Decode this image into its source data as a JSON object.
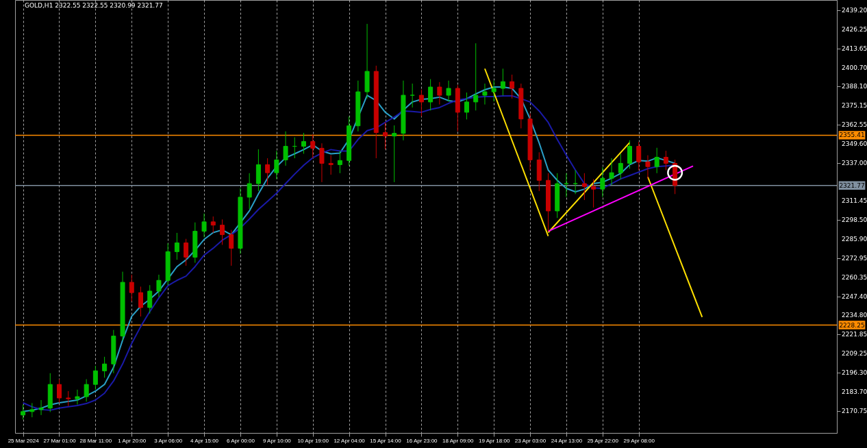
{
  "chart_data": {
    "type": "candlestick",
    "title": "GOLD,H1  2322.55 2322.55 2320.99 2321.77",
    "categories": [
      "25 Mar 2024",
      null,
      null,
      null,
      "27 Mar 01:00",
      null,
      null,
      null,
      "28 Mar 11:00",
      null,
      null,
      null,
      "1 Apr 20:00",
      null,
      null,
      null,
      "3 Apr 06:00",
      null,
      null,
      null,
      "4 Apr 15:00",
      null,
      null,
      null,
      "6 Apr 00:00",
      null,
      null,
      null,
      "9 Apr 10:00",
      null,
      null,
      null,
      "10 Apr 19:00",
      null,
      null,
      null,
      "12 Apr 04:00",
      null,
      null,
      null,
      "15 Apr 14:00",
      null,
      null,
      null,
      "16 Apr 23:00",
      null,
      null,
      null,
      "18 Apr 09:00",
      null,
      null,
      null,
      "19 Apr 18:00",
      null,
      null,
      null,
      "23 Apr 03:00",
      null,
      null,
      null,
      "24 Apr 13:00",
      null,
      null,
      null,
      "25 Apr 22:00",
      null,
      null,
      null,
      "29 Apr 08:00",
      null,
      null,
      null,
      null,
      null,
      null,
      null,
      null,
      null,
      null,
      null,
      null,
      null,
      null,
      null,
      null,
      null,
      null,
      null,
      null,
      null
    ],
    "ohlc": [
      [
        2168.0,
        2175.0,
        2165.0,
        2170.3
      ],
      [
        2170.3,
        2176.0,
        2166.5,
        2171.6
      ],
      [
        2171.6,
        2178.0,
        2168.0,
        2172.6
      ],
      [
        2172.6,
        2196.0,
        2170.0,
        2188.5
      ],
      [
        2188.5,
        2192.0,
        2176.0,
        2179.4
      ],
      [
        2179.4,
        2184.0,
        2174.0,
        2178.9
      ],
      [
        2178.9,
        2185.0,
        2175.0,
        2180.3
      ],
      [
        2180.3,
        2192.0,
        2177.0,
        2188.5
      ],
      [
        2188.5,
        2201.0,
        2185.0,
        2197.6
      ],
      [
        2197.6,
        2207.0,
        2193.0,
        2202.2
      ],
      [
        2202.2,
        2225.0,
        2196.0,
        2220.9
      ],
      [
        2220.9,
        2264.0,
        2218.0,
        2256.9
      ],
      [
        2256.9,
        2262.0,
        2244.0,
        2250.0
      ],
      [
        2250.0,
        2254.0,
        2234.0,
        2240.0
      ],
      [
        2240.0,
        2255.0,
        2236.0,
        2251.0
      ],
      [
        2251.0,
        2262.0,
        2247.0,
        2258.2
      ],
      [
        2258.2,
        2283.0,
        2255.0,
        2277.4
      ],
      [
        2277.4,
        2290.0,
        2272.0,
        2283.3
      ],
      [
        2283.3,
        2286.0,
        2268.0,
        2273.7
      ],
      [
        2273.7,
        2297.0,
        2270.0,
        2291.1
      ],
      [
        2291.1,
        2303.0,
        2287.0,
        2297.4
      ],
      [
        2297.4,
        2301.0,
        2290.0,
        2295.2
      ],
      [
        2295.2,
        2299.0,
        2282.0,
        2288.8
      ],
      [
        2288.8,
        2292.0,
        2268.0,
        2279.7
      ],
      [
        2279.7,
        2320.0,
        2276.0,
        2313.9
      ],
      [
        2313.9,
        2330.0,
        2306.0,
        2323.0
      ],
      [
        2323.0,
        2346.0,
        2318.0,
        2335.7
      ],
      [
        2335.7,
        2340.0,
        2322.0,
        2330.3
      ],
      [
        2330.3,
        2345.0,
        2326.0,
        2338.9
      ],
      [
        2338.9,
        2358.0,
        2335.0,
        2348.0
      ],
      [
        2348.0,
        2354.0,
        2340.0,
        2348.0
      ],
      [
        2348.0,
        2357.0,
        2343.0,
        2351.2
      ],
      [
        2351.2,
        2356.0,
        2340.0,
        2346.7
      ],
      [
        2346.7,
        2350.0,
        2324.0,
        2336.6
      ],
      [
        2336.6,
        2342.0,
        2329.0,
        2335.7
      ],
      [
        2335.7,
        2345.0,
        2330.0,
        2338.5
      ],
      [
        2338.5,
        2368.0,
        2335.0,
        2361.7
      ],
      [
        2361.7,
        2392.0,
        2358.0,
        2384.5
      ],
      [
        2384.5,
        2430.0,
        2380.0,
        2398.2
      ],
      [
        2398.2,
        2402.0,
        2340.0,
        2357.2
      ],
      [
        2357.2,
        2364.0,
        2346.0,
        2354.9
      ],
      [
        2354.9,
        2362.0,
        2324.0,
        2356.7
      ],
      [
        2356.7,
        2392.0,
        2352.0,
        2382.2
      ],
      [
        2382.2,
        2390.0,
        2374.0,
        2382.2
      ],
      [
        2382.2,
        2386.0,
        2368.0,
        2377.7
      ],
      [
        2377.7,
        2393.0,
        2372.0,
        2387.7
      ],
      [
        2387.7,
        2391.0,
        2376.0,
        2382.2
      ],
      [
        2382.2,
        2392.0,
        2378.0,
        2386.8
      ],
      [
        2386.8,
        2389.0,
        2358.0,
        2370.8
      ],
      [
        2370.8,
        2384.0,
        2366.0,
        2377.7
      ],
      [
        2377.7,
        2417.0,
        2372.0,
        2382.2
      ],
      [
        2382.2,
        2390.0,
        2376.0,
        2384.5
      ],
      [
        2384.5,
        2392.0,
        2378.0,
        2386.8
      ],
      [
        2386.8,
        2400.0,
        2382.0,
        2391.3
      ],
      [
        2391.3,
        2396.0,
        2380.0,
        2386.8
      ],
      [
        2386.8,
        2390.0,
        2360.0,
        2366.3
      ],
      [
        2366.3,
        2370.0,
        2332.0,
        2338.9
      ],
      [
        2338.9,
        2344.0,
        2318.0,
        2325.2
      ],
      [
        2325.2,
        2330.0,
        2291.0,
        2304.7
      ],
      [
        2304.7,
        2330.0,
        2300.0,
        2323.0
      ],
      [
        2323.0,
        2330.0,
        2314.0,
        2323.0
      ],
      [
        2323.0,
        2332.0,
        2316.0,
        2323.0
      ],
      [
        2323.0,
        2330.0,
        2312.0,
        2321.1
      ],
      [
        2321.1,
        2326.0,
        2307.0,
        2319.3
      ],
      [
        2319.3,
        2334.0,
        2314.0,
        2326.6
      ],
      [
        2326.6,
        2340.0,
        2322.0,
        2330.3
      ],
      [
        2330.3,
        2343.0,
        2326.0,
        2336.6
      ],
      [
        2336.6,
        2352.0,
        2333.0,
        2348.0
      ],
      [
        2348.0,
        2351.0,
        2332.0,
        2337.6
      ],
      [
        2337.6,
        2342.0,
        2326.0,
        2334.4
      ],
      [
        2334.4,
        2347.0,
        2330.0,
        2340.7
      ],
      [
        2340.7,
        2345.0,
        2332.0,
        2336.6
      ],
      [
        2336.6,
        2339.0,
        2316.0,
        2321.8
      ],
      null,
      null,
      null,
      null,
      null,
      null,
      null,
      null,
      null,
      null,
      null,
      null,
      null,
      null,
      null,
      null,
      null
    ],
    "colors": [
      "#00c000",
      "#00c000",
      "#00c000",
      "#00c000",
      "#c80000",
      "#c80000",
      "#00c000",
      "#00c000",
      "#00c000",
      "#00c000",
      "#00c000",
      "#00c000",
      "#c80000",
      "#c80000",
      "#00c000",
      "#00c000",
      "#00c000",
      "#00c000",
      "#c80000",
      "#00c000",
      "#00c000",
      "#c80000",
      "#c80000",
      "#c80000",
      "#00c000",
      "#00c000",
      "#00c000",
      "#c80000",
      "#00c000",
      "#00c000",
      "#00c000",
      "#00c000",
      "#c80000",
      "#c80000",
      "#c80000",
      "#00c000",
      "#00c000",
      "#00c000",
      "#00c000",
      "#c80000",
      "#c80000",
      "#00c000",
      "#00c000",
      "#00c000",
      "#c80000",
      "#00c000",
      "#c80000",
      "#00c000",
      "#c80000",
      "#00c000",
      "#00c000",
      "#00c000",
      "#00c000",
      "#00c000",
      "#c80000",
      "#c80000",
      "#c80000",
      "#c80000",
      "#c80000",
      "#00c000",
      "#00c000",
      "#00c000",
      "#c80000",
      "#c80000",
      "#00c000",
      "#00c000",
      "#00c000",
      "#00c000",
      "#c80000",
      "#c80000",
      "#00c000",
      "#c80000",
      "#c80000",
      null,
      null,
      null,
      null,
      null,
      null,
      null,
      null,
      null,
      null,
      null,
      null,
      null,
      null,
      null,
      null,
      null
    ],
    "series": [
      {
        "type": "line",
        "color": "#2aa0c8",
        "values": [
          2170.3,
          2171.2,
          2172.6,
          2174.8,
          2176.2,
          2177.1,
          2178.0,
          2180.8,
          2184.0,
          2188.5,
          2199.9,
          2218.1,
          2234.1,
          2240.9,
          2245.5,
          2251.0,
          2259.2,
          2267.4,
          2271.9,
          2278.3,
          2285.6,
          2290.2,
          2292.0,
          2288.8,
          null,
          2304.7,
          2316.1,
          2326.6,
          2334.4,
          2340.3,
          2343.0,
          2345.8,
          2349.0,
          2344.8,
          2343.0,
          2343.5,
          2352.6,
          null,
          2382.2,
          2378.6,
          2370.8,
          2366.3,
          2372.2,
          2377.7,
          2379.5,
          2379.9,
          2380.9,
          2378.6,
          2377.7,
          2379.9,
          2383.1,
          2385.9,
          2387.7,
          2387.7,
          2386.8,
          2379.9,
          2366.3,
          2350.3,
          2332.1,
          2325.2,
          2319.8,
          2317.5,
          2319.3,
          2323.0,
          2323.9,
          2326.6,
          2329.8,
          2335.7,
          2338.5,
          2338.0,
          2340.3,
          2338.5,
          2336.6,
          null,
          null,
          null,
          null,
          null,
          null,
          null,
          null,
          null,
          null,
          null,
          null,
          null,
          null,
          null,
          null,
          null
        ]
      },
      {
        "type": "line",
        "color": "#1a1aa8",
        "values": [
          2176.2,
          2173.5,
          2171.7,
          2171.2,
          2172.6,
          2173.5,
          2174.4,
          2175.7,
          2178.0,
          2182.6,
          2190.8,
          2202.2,
          2215.9,
          2227.3,
          2237.3,
          2246.4,
          2254.6,
          2258.2,
          2261.0,
          2267.4,
          2275.1,
          2279.7,
          2285.1,
          2288.8,
          2293.3,
          2299.3,
          2305.7,
          2311.1,
          2316.6,
          2323.0,
          2329.4,
          2335.3,
          2340.3,
          2343.5,
          2345.8,
          2344.8,
          2344.8,
          2352.6,
          2358.5,
          2360.3,
          2364.0,
          2367.6,
          2371.7,
          2371.3,
          2370.8,
          2372.7,
          2374.0,
          2376.8,
          2379.0,
          2379.9,
          2380.9,
          2381.3,
          2381.3,
          2381.8,
          2381.8,
          2379.9,
          2377.7,
          2371.7,
          2364.0,
          2352.6,
          2342.1,
          2332.1,
          2323.0,
          2320.2,
          2319.8,
          2323.0,
          2326.2,
          2328.4,
          2330.7,
          2333.0,
          2334.4,
          2334.8,
          2335.3,
          null,
          null,
          null,
          null,
          null,
          null,
          null,
          null,
          null,
          null,
          null,
          null,
          null,
          null,
          null,
          null,
          null
        ]
      },
      {
        "type": "line",
        "color": "#ffe000",
        "values": [
          null,
          null,
          null,
          null,
          null,
          null,
          null,
          null,
          null,
          null,
          null,
          null,
          null,
          null,
          null,
          null,
          null,
          null,
          null,
          null,
          null,
          null,
          null,
          null,
          null,
          null,
          null,
          null,
          null,
          null,
          null,
          null,
          null,
          null,
          null,
          null,
          null,
          null,
          null,
          null,
          null,
          null,
          null,
          null,
          null,
          null,
          null,
          null,
          null,
          null,
          null,
          2400.0,
          null,
          null,
          null,
          null,
          null,
          null,
          2287.9,
          null,
          null,
          null,
          null,
          null,
          null,
          null,
          null,
          null,
          null,
          null,
          null,
          null,
          null,
          null,
          null,
          null,
          null,
          null,
          null,
          null,
          null,
          null,
          null,
          null,
          null,
          null,
          null,
          null,
          null,
          null
        ]
      },
      {
        "type": "line",
        "color": "#ffe000",
        "values": [
          null,
          null,
          null,
          null,
          null,
          null,
          null,
          null,
          null,
          null,
          null,
          null,
          null,
          null,
          null,
          null,
          null,
          null,
          null,
          null,
          null,
          null,
          null,
          null,
          null,
          null,
          null,
          null,
          null,
          null,
          null,
          null,
          null,
          null,
          null,
          null,
          null,
          null,
          null,
          null,
          null,
          null,
          null,
          null,
          null,
          null,
          null,
          null,
          null,
          null,
          null,
          null,
          null,
          null,
          null,
          null,
          null,
          null,
          2290.2,
          null,
          null,
          null,
          null,
          null,
          null,
          null,
          null,
          2350.5,
          null,
          null,
          null,
          null,
          null,
          null,
          null,
          null,
          null,
          null,
          null,
          null,
          null,
          null,
          null,
          null,
          null,
          null,
          null,
          null,
          null,
          null
        ]
      },
      {
        "type": "line",
        "color": "#ffe000",
        "values": [
          null,
          null,
          null,
          null,
          null,
          null,
          null,
          null,
          null,
          null,
          null,
          null,
          null,
          null,
          null,
          null,
          null,
          null,
          null,
          null,
          null,
          null,
          null,
          null,
          null,
          null,
          null,
          null,
          null,
          null,
          null,
          null,
          null,
          null,
          null,
          null,
          null,
          null,
          null,
          null,
          null,
          null,
          null,
          null,
          null,
          null,
          null,
          null,
          null,
          null,
          null,
          null,
          null,
          null,
          null,
          null,
          null,
          null,
          null,
          null,
          null,
          null,
          null,
          null,
          null,
          null,
          null,
          null,
          null,
          2327.5,
          null,
          null,
          null,
          null,
          null,
          2233.6,
          null,
          null,
          null,
          null,
          null,
          null,
          null,
          null,
          null,
          null,
          null,
          null,
          null,
          null
        ]
      },
      {
        "type": "line",
        "color": "#ff00ff",
        "values": [
          null,
          null,
          null,
          null,
          null,
          null,
          null,
          null,
          null,
          null,
          null,
          null,
          null,
          null,
          null,
          null,
          null,
          null,
          null,
          null,
          null,
          null,
          null,
          null,
          null,
          null,
          null,
          null,
          null,
          null,
          null,
          null,
          null,
          null,
          null,
          null,
          null,
          null,
          null,
          null,
          null,
          null,
          null,
          null,
          null,
          null,
          null,
          null,
          null,
          null,
          null,
          null,
          null,
          null,
          null,
          null,
          null,
          null,
          2291.1,
          null,
          null,
          null,
          null,
          null,
          null,
          null,
          null,
          null,
          null,
          null,
          null,
          null,
          null,
          null,
          2334.8,
          null,
          null,
          null,
          null,
          null,
          null,
          null,
          null,
          null,
          null,
          null,
          null,
          null,
          null,
          null
        ]
      },
      {
        "type": "scatter",
        "color": "#ffffff",
        "marker": "circle",
        "values": [
          null,
          null,
          null,
          null,
          null,
          null,
          null,
          null,
          null,
          null,
          null,
          null,
          null,
          null,
          null,
          null,
          null,
          null,
          null,
          null,
          null,
          null,
          null,
          null,
          null,
          null,
          null,
          null,
          null,
          null,
          null,
          null,
          null,
          null,
          null,
          null,
          null,
          null,
          null,
          null,
          null,
          null,
          null,
          null,
          null,
          null,
          null,
          null,
          null,
          null,
          null,
          null,
          null,
          null,
          null,
          null,
          null,
          null,
          null,
          null,
          null,
          null,
          null,
          null,
          null,
          null,
          null,
          null,
          null,
          null,
          null,
          null,
          2330.3,
          null,
          null,
          null,
          null,
          null,
          null,
          null,
          null,
          null,
          null,
          null,
          null,
          null,
          null,
          null,
          null,
          null
        ]
      }
    ],
    "ylim": [
      2156,
      2446
    ],
    "yticks": [
      2170.75,
      {
        "value": 2183.7,
        "label": "2183.70"
      },
      {
        "value": 2196.3,
        "label": "2196.30"
      },
      2209.25,
      2221.85,
      {
        "value": 2234.8,
        "label": "2234.80"
      },
      {
        "value": 2247.4,
        "label": "2247.40"
      },
      2260.35,
      2272.95,
      {
        "value": 2285.9,
        "label": "2285.90"
      },
      {
        "value": 2298.5,
        "label": "2298.50"
      },
      2311.45,
      {
        "value": 2337,
        "label": "2337.00"
      },
      {
        "value": 2349.6,
        "label": "2349.60"
      },
      2362.55,
      2375.15,
      {
        "value": 2388.1,
        "label": "2388.10"
      },
      {
        "value": 2400.7,
        "label": "2400.70"
      },
      2413.65,
      2426.25,
      {
        "value": 2439.2,
        "label": "2439.20"
      }
    ],
    "ref_lines": [
      {
        "axis": "y",
        "value": 2355.41,
        "label": "2355.41",
        "color": "#ff8c00"
      },
      {
        "axis": "y",
        "value": 2228.25,
        "label": "2228.25",
        "color": "#ff8c00"
      },
      {
        "axis": "y",
        "value": 2321.77,
        "label": "2321.77",
        "color": "#8090a0"
      }
    ],
    "grid": "x"
  }
}
